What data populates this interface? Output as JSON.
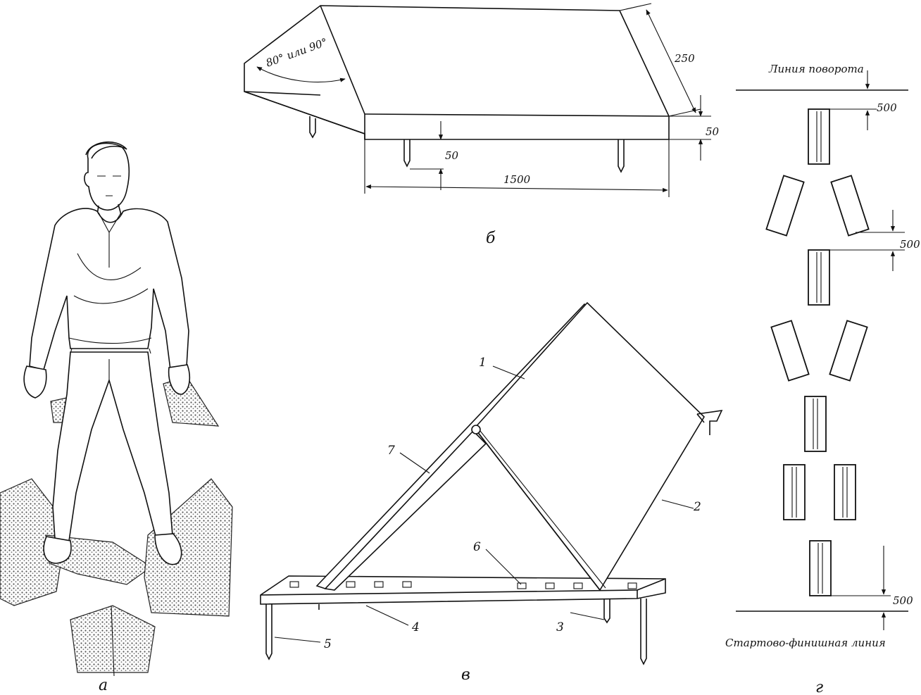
{
  "panels": {
    "a": {
      "caption": "а"
    },
    "b": {
      "caption": "б",
      "angle_label": "80° или 90°",
      "dims": {
        "slope": "250",
        "height_right": "50",
        "leg": "50",
        "length": "1500"
      }
    },
    "v": {
      "caption": "в",
      "parts": [
        "1",
        "2",
        "3",
        "4",
        "5",
        "6",
        "7"
      ]
    },
    "g": {
      "caption": "г",
      "turn_line_label": "Линия поворота",
      "start_finish_label": "Стартово-финишная линия",
      "dims": {
        "top": "500",
        "middle": "500",
        "bottom": "500"
      }
    }
  }
}
